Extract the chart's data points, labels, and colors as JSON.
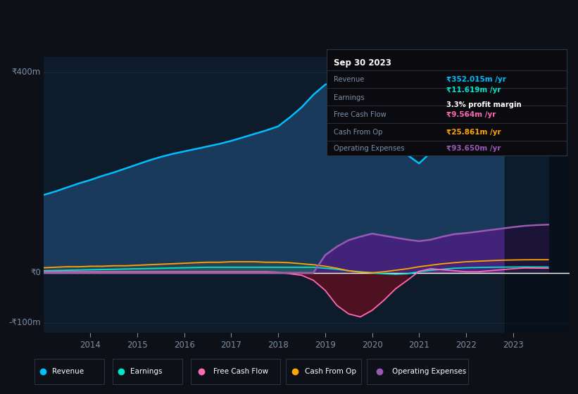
{
  "bg_color": "#0d1117",
  "plot_bg": "#0d1b2a",
  "ylim": [
    -120,
    430
  ],
  "y_label_400": "₹400m",
  "y_label_0": "₹0",
  "y_label_neg100": "-₹100m",
  "years": [
    2013.0,
    2013.25,
    2013.5,
    2013.75,
    2014.0,
    2014.25,
    2014.5,
    2014.75,
    2015.0,
    2015.25,
    2015.5,
    2015.75,
    2016.0,
    2016.25,
    2016.5,
    2016.75,
    2017.0,
    2017.25,
    2017.5,
    2017.75,
    2018.0,
    2018.25,
    2018.5,
    2018.75,
    2019.0,
    2019.25,
    2019.5,
    2019.75,
    2020.0,
    2020.25,
    2020.5,
    2020.75,
    2021.0,
    2021.25,
    2021.5,
    2021.75,
    2022.0,
    2022.25,
    2022.5,
    2022.75,
    2023.0,
    2023.25,
    2023.5,
    2023.75
  ],
  "revenue": [
    155,
    162,
    170,
    178,
    185,
    193,
    200,
    208,
    216,
    224,
    231,
    237,
    242,
    247,
    252,
    257,
    263,
    270,
    277,
    284,
    292,
    310,
    330,
    355,
    375,
    385,
    380,
    368,
    325,
    285,
    255,
    235,
    218,
    240,
    268,
    298,
    318,
    328,
    336,
    343,
    347,
    352,
    354,
    356
  ],
  "earnings": [
    4,
    4.5,
    5,
    5.5,
    6,
    6.5,
    7,
    7.5,
    8,
    8.5,
    9,
    9.5,
    10,
    10.5,
    11,
    11,
    11,
    11,
    11,
    11,
    11,
    11,
    11,
    11,
    9,
    7,
    4,
    2,
    0,
    -2,
    -3,
    -2,
    2,
    5,
    7,
    9,
    10,
    10.5,
    11,
    11.2,
    11.4,
    11.619,
    11.5,
    11.4
  ],
  "free_cash_flow": [
    2,
    2,
    2,
    2,
    2,
    2,
    2,
    2,
    2,
    2,
    2,
    2,
    2,
    2,
    2,
    2,
    2,
    2,
    2,
    2,
    1,
    -2,
    -5,
    -15,
    -35,
    -65,
    -82,
    -88,
    -75,
    -55,
    -32,
    -15,
    3,
    8,
    6,
    4,
    2,
    2,
    4,
    6,
    8,
    9.564,
    9.2,
    9.0
  ],
  "cash_from_op": [
    10,
    11,
    12,
    12,
    13,
    13,
    14,
    14,
    15,
    16,
    17,
    18,
    19,
    20,
    21,
    21,
    22,
    22,
    22,
    21,
    21,
    20,
    18,
    16,
    13,
    9,
    4,
    1,
    0,
    2,
    5,
    8,
    12,
    15,
    18,
    20,
    22,
    23,
    24,
    25,
    25.5,
    25.861,
    26,
    26
  ],
  "operating_expenses": [
    0,
    0,
    0,
    0,
    0,
    0,
    0,
    0,
    0,
    0,
    0,
    0,
    0,
    0,
    0,
    0,
    0,
    0,
    0,
    0,
    0,
    0,
    0,
    0,
    35,
    52,
    65,
    72,
    78,
    74,
    70,
    66,
    63,
    66,
    72,
    77,
    79,
    82,
    85,
    88,
    91,
    93.65,
    95,
    96
  ],
  "revenue_color": "#00bfff",
  "revenue_fill": "#1a3a5c",
  "earnings_color": "#00e5cc",
  "free_cash_flow_color": "#ff69b4",
  "free_cash_flow_fill_neg": "#5a1020",
  "cash_from_op_color": "#ffa500",
  "operating_expenses_color": "#9b59b6",
  "operating_expenses_fill": "#4a2080",
  "tooltip_title": "Sep 30 2023",
  "tooltip_revenue": "₹352.015m /yr",
  "tooltip_earnings": "₹11.619m /yr",
  "tooltip_margin": "3.3% profit margin",
  "tooltip_fcf": "₹9.564m /yr",
  "tooltip_cashop": "₹25.861m /yr",
  "tooltip_opex": "₹93.650m /yr",
  "revenue_label_color": "#00bfff",
  "earnings_label_color": "#00e5cc",
  "fcf_label_color": "#ff69b4",
  "cashop_label_color": "#ffa500",
  "opex_label_color": "#9b59b6",
  "white_line_color": "#ffffff",
  "grid_color": "#1e3040",
  "text_color_dim": "#7a8fa8",
  "xlim": [
    2013.0,
    2024.2
  ],
  "xticks": [
    2014,
    2015,
    2016,
    2017,
    2018,
    2019,
    2020,
    2021,
    2022,
    2023
  ],
  "dark_band_start": 2022.83
}
